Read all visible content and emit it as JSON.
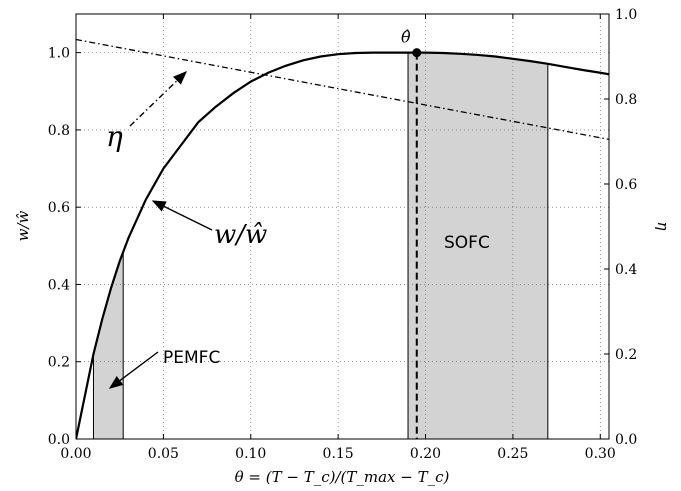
{
  "chart_data": {
    "type": "line",
    "xlabel": "θ = (T − T_c)/(T_max − T_c)",
    "ylabel_left": "w/ŵ",
    "ylabel_right": "η",
    "xlim": [
      0.0,
      0.305
    ],
    "ylim_left": [
      0.0,
      1.1
    ],
    "ylim_right": [
      0.0,
      1.0
    ],
    "x_ticks": [
      "0.00",
      "0.05",
      "0.10",
      "0.15",
      "0.20",
      "0.25",
      "0.30"
    ],
    "x_tick_values": [
      0.0,
      0.05,
      0.1,
      0.15,
      0.2,
      0.25,
      0.3
    ],
    "y_left_ticks": [
      "0.0",
      "0.2",
      "0.4",
      "0.6",
      "0.8",
      "1.0"
    ],
    "y_left_tick_values": [
      0.0,
      0.2,
      0.4,
      0.6,
      0.8,
      1.0
    ],
    "y_right_ticks": [
      "0.0",
      "0.2",
      "0.4",
      "0.6",
      "0.8",
      "1.0"
    ],
    "y_right_tick_values": [
      0.0,
      0.2,
      0.4,
      0.6,
      0.8,
      1.0
    ],
    "grid": true,
    "series": [
      {
        "name": "w/ŵ",
        "axis": "left",
        "style": "solid",
        "color": "#000000",
        "x": [
          0.0,
          0.005,
          0.01,
          0.015,
          0.02,
          0.025,
          0.03,
          0.04,
          0.05,
          0.06,
          0.07,
          0.08,
          0.09,
          0.1,
          0.11,
          0.12,
          0.13,
          0.14,
          0.15,
          0.16,
          0.17,
          0.18,
          0.19,
          0.195,
          0.2,
          0.21,
          0.22,
          0.23,
          0.24,
          0.25,
          0.26,
          0.27,
          0.28,
          0.29,
          0.3,
          0.305
        ],
        "y": [
          0.0,
          0.11,
          0.22,
          0.31,
          0.39,
          0.46,
          0.52,
          0.62,
          0.7,
          0.76,
          0.82,
          0.86,
          0.895,
          0.925,
          0.948,
          0.966,
          0.98,
          0.99,
          0.996,
          0.999,
          1.0,
          1.0,
          1.0,
          1.0,
          1.0,
          0.999,
          0.997,
          0.994,
          0.99,
          0.984,
          0.978,
          0.971,
          0.963,
          0.955,
          0.948,
          0.944
        ]
      },
      {
        "name": "η",
        "axis": "right",
        "style": "dashdot",
        "color": "#000000",
        "x": [
          0.0,
          0.305
        ],
        "y": [
          0.94,
          0.705
        ]
      }
    ],
    "shaded_regions": [
      {
        "name": "PEMFC",
        "x_start": 0.01,
        "x_end": 0.027,
        "color": "#d3d3d3"
      },
      {
        "name": "SOFC",
        "x_start": 0.19,
        "x_end": 0.27,
        "color": "#d3d3d3"
      }
    ],
    "optimum": {
      "label": "θ̂",
      "x": 0.195,
      "y": 1.0
    },
    "annotations": {
      "curve_label": "w/ŵ",
      "eta_label": "η",
      "pemfc_label": "PEMFC",
      "sofc_label": "SOFC"
    }
  }
}
